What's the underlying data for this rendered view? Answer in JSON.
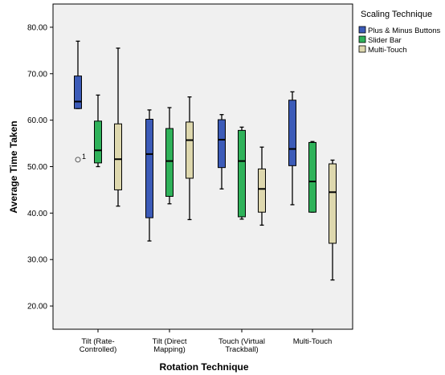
{
  "chart_data": {
    "type": "boxplot",
    "xlabel": "Rotation Technique",
    "ylabel": "Average Time Taken",
    "ylim": [
      15,
      85
    ],
    "yticks": [
      "20.00",
      "30.00",
      "40.00",
      "50.00",
      "60.00",
      "70.00",
      "80.00"
    ],
    "ytick_values": [
      20,
      30,
      40,
      50,
      60,
      70,
      80
    ],
    "categories": [
      [
        "Tilt (Rate-",
        "Controlled)"
      ],
      [
        "Tilt (Direct",
        "Mapping)"
      ],
      [
        "Touch (Virtual",
        "Trackball)"
      ],
      [
        "Multi-Touch"
      ]
    ],
    "legend": {
      "title": "Scaling Technique",
      "position": "top-right",
      "entries": [
        "Plus & Minus Buttons",
        "Slider Bar",
        "Multi-Touch"
      ]
    },
    "grid": false,
    "series": [
      {
        "name": "Plus & Minus Buttons",
        "color": "#3c5bb8",
        "boxes": [
          {
            "min": 62.5,
            "q1": 62.5,
            "median": 64.0,
            "q3": 69.5,
            "max": 77.0
          },
          {
            "min": 34.0,
            "q1": 39.0,
            "median": 52.7,
            "q3": 60.2,
            "max": 62.2
          },
          {
            "min": 45.2,
            "q1": 49.8,
            "median": 55.8,
            "q3": 60.1,
            "max": 61.2
          },
          {
            "min": 41.8,
            "q1": 50.2,
            "median": 53.8,
            "q3": 64.3,
            "max": 66.1
          }
        ]
      },
      {
        "name": "Slider Bar",
        "color": "#2fb25a",
        "boxes": [
          {
            "min": 50.0,
            "q1": 50.8,
            "median": 53.5,
            "q3": 59.8,
            "max": 65.4
          },
          {
            "min": 42.0,
            "q1": 43.6,
            "median": 51.2,
            "q3": 58.2,
            "max": 62.7
          },
          {
            "min": 38.7,
            "q1": 39.2,
            "median": 51.2,
            "q3": 57.8,
            "max": 58.5
          },
          {
            "min": 40.2,
            "q1": 40.2,
            "median": 46.8,
            "q3": 55.2,
            "max": 55.4
          }
        ]
      },
      {
        "name": "Multi-Touch",
        "color": "#ded8ae",
        "boxes": [
          {
            "min": 41.5,
            "q1": 45.0,
            "median": 51.6,
            "q3": 59.2,
            "max": 75.5
          },
          {
            "min": 38.6,
            "q1": 47.5,
            "median": 55.7,
            "q3": 59.6,
            "max": 65.0
          },
          {
            "min": 37.4,
            "q1": 40.2,
            "median": 45.2,
            "q3": 49.5,
            "max": 54.2
          },
          {
            "min": 25.6,
            "q1": 33.5,
            "median": 44.5,
            "q3": 50.6,
            "max": 51.4
          }
        ]
      }
    ],
    "outliers": [
      {
        "series": 0,
        "category": 0,
        "value": 51.5,
        "label": "1"
      }
    ]
  }
}
